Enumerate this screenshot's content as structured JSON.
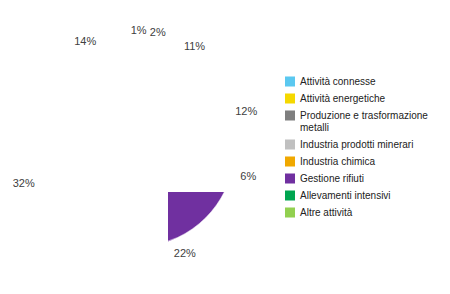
{
  "chart_data": {
    "type": "pie",
    "categories": [
      "Attività connesse",
      "Attività energetiche",
      "Produzione e trasformazione\nmetalli",
      "Industria prodotti minerari",
      "Industria chimica",
      "Gestione rifiuti",
      "Allevamenti intensivi",
      "Altre attività"
    ],
    "values": [
      1,
      2,
      11,
      12,
      6,
      22,
      32,
      14
    ],
    "value_labels": [
      "1%",
      "2%",
      "11%",
      "12%",
      "6%",
      "22%",
      "32%",
      "14%"
    ],
    "colors": [
      "#5bc8f0",
      "#f5d800",
      "#7f7f7f",
      "#c0c0c0",
      "#f0a800",
      "#7030a0",
      "#00a550",
      "#92d050"
    ],
    "data_labels": true,
    "legend": "right"
  }
}
